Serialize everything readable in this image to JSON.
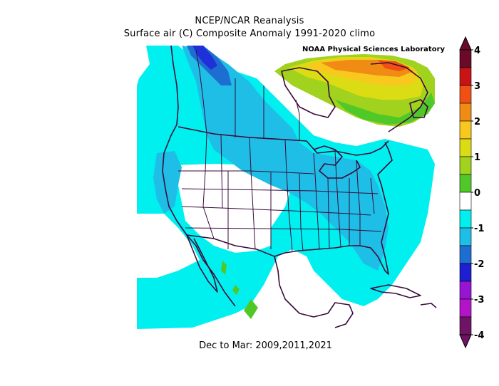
{
  "header": {
    "title": "NCEP/NCAR Reanalysis",
    "subtitle": "Surface air (C) Composite Anomaly 1991-2020 climo"
  },
  "credit": "NOAA Physical Sciences Laboratory",
  "footer": "Dec to Mar: 2009,2011,2021",
  "colorbar": {
    "labels": [
      "4",
      "3",
      "2",
      "1",
      "0",
      "-1",
      "-2",
      "-3",
      "-4"
    ],
    "colors": [
      "#6a0a28",
      "#c81414",
      "#f05014",
      "#f08c14",
      "#f8c81e",
      "#dcdc14",
      "#a0d21e",
      "#50c828",
      "#ffffff",
      "#00f0f0",
      "#1ebee6",
      "#1e6ed2",
      "#1e1ed2",
      "#9614d2",
      "#b414c8",
      "#6e1464"
    ]
  }
}
